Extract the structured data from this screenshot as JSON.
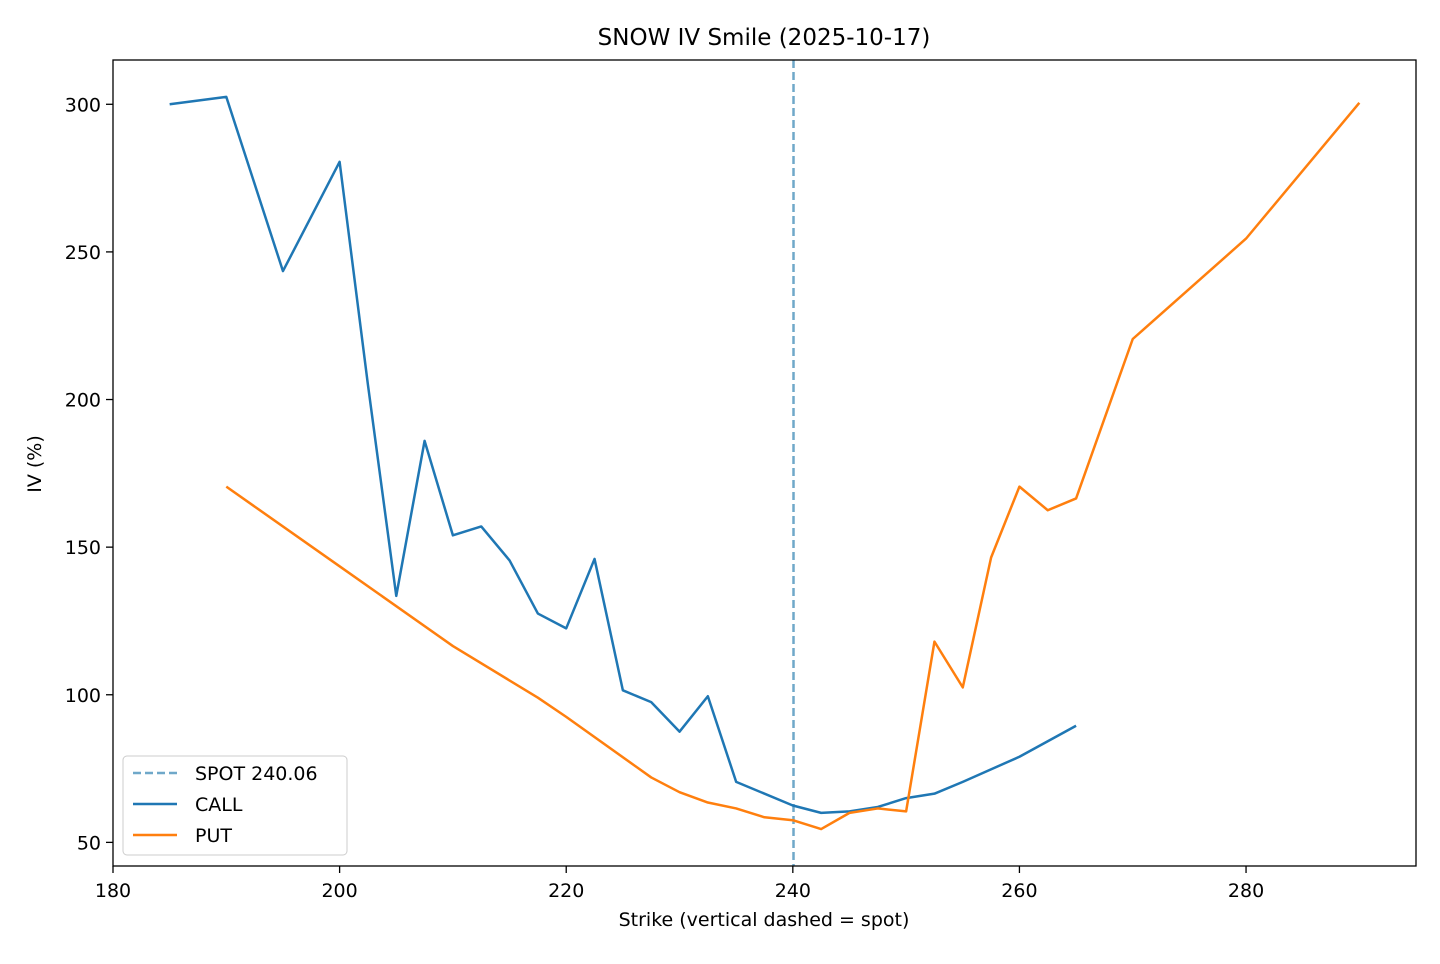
{
  "chart_data": {
    "type": "line",
    "title": "SNOW IV Smile (2025-10-17)",
    "xlabel": "Strike (vertical dashed = spot)",
    "ylabel": "IV (%)",
    "xlim": [
      180,
      295
    ],
    "ylim": [
      42,
      315
    ],
    "xticks": [
      180,
      200,
      220,
      240,
      260,
      280
    ],
    "yticks": [
      50,
      100,
      150,
      200,
      250,
      300
    ],
    "grid": false,
    "legend_position": "lower-left",
    "spot": {
      "label": "SPOT 240.06",
      "value": 240.06,
      "style": "dashed",
      "color": "#6fa8c9"
    },
    "series": [
      {
        "name": "CALL",
        "color": "#1f77b4",
        "x": [
          185,
          190,
          195,
          200,
          202.5,
          205,
          207.5,
          210,
          212.5,
          215,
          217.5,
          220,
          222.5,
          225,
          227.5,
          230,
          232.5,
          235,
          240,
          242.5,
          245,
          247.5,
          250,
          252.5,
          255,
          260,
          265
        ],
        "y": [
          300,
          302.5,
          243.5,
          280.5,
          205,
          133.5,
          186,
          154,
          157,
          145.5,
          127.5,
          122.5,
          146,
          101.5,
          97.5,
          87.5,
          99.5,
          70.5,
          62.5,
          60,
          60.5,
          62,
          65,
          66.5,
          70.5,
          79,
          89.5
        ]
      },
      {
        "name": "PUT",
        "color": "#ff7f0e",
        "x": [
          190,
          200,
          210,
          217.5,
          220,
          227.5,
          230,
          232.5,
          235,
          237.5,
          240,
          242.5,
          245,
          247.5,
          250,
          252.5,
          255,
          257.5,
          260,
          262.5,
          265,
          270,
          280,
          290
        ],
        "y": [
          170.5,
          143.5,
          116.5,
          99,
          92.5,
          72,
          67,
          63.5,
          61.5,
          58.5,
          57.5,
          54.5,
          60,
          61.5,
          60.5,
          118,
          102.5,
          146.5,
          170.5,
          162.5,
          166.5,
          220.5,
          254.5,
          300.5
        ]
      }
    ]
  }
}
